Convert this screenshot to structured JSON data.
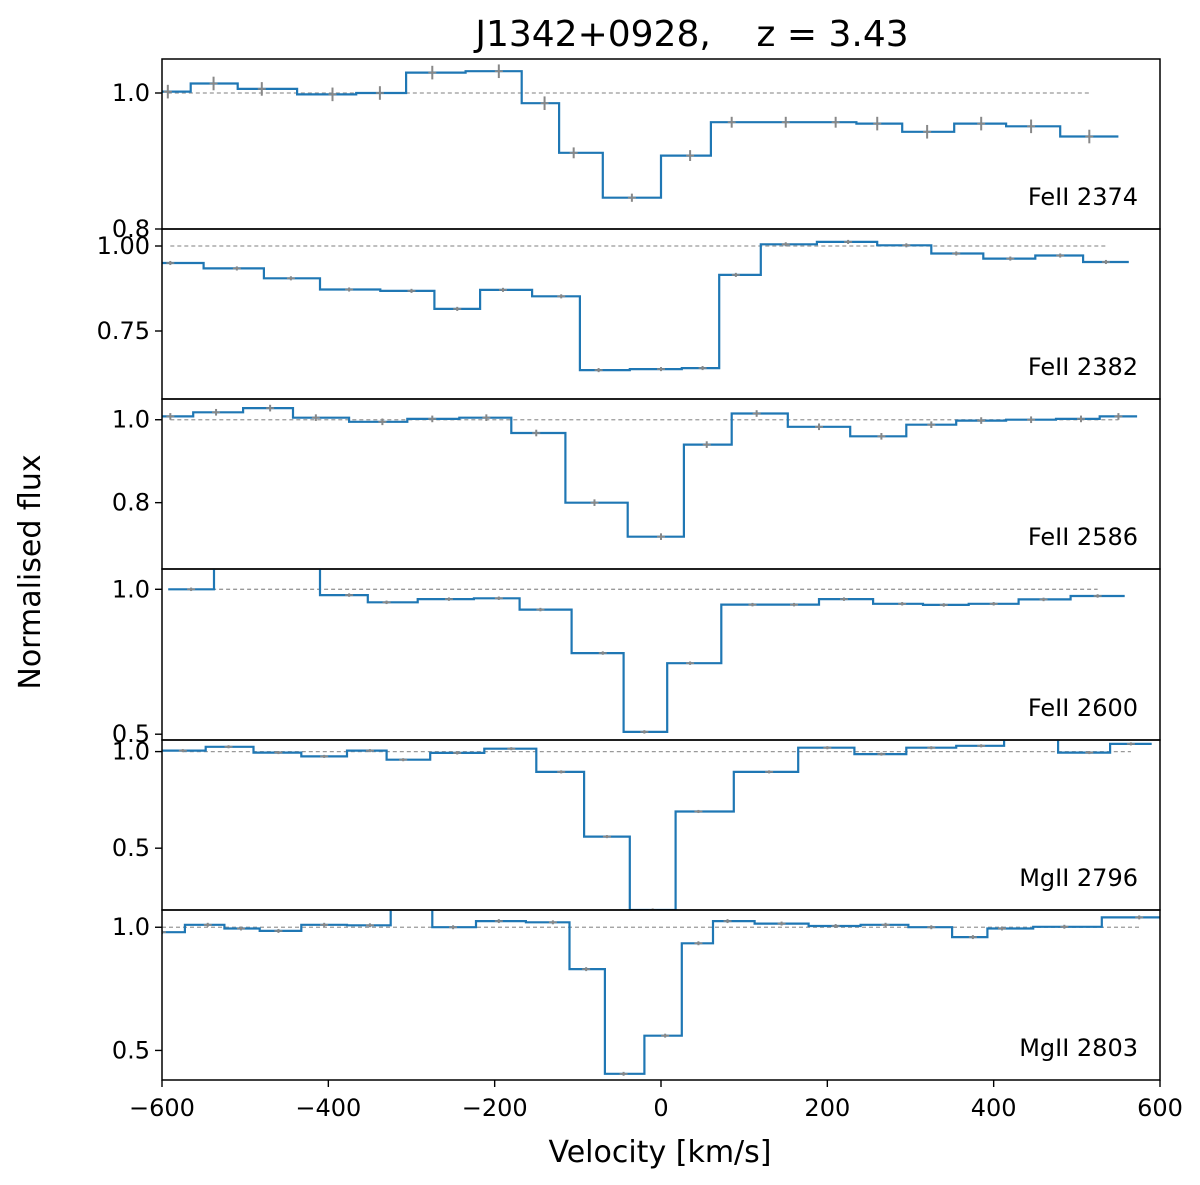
{
  "chart_data": {
    "type": "line",
    "title": "J1342+0928,    z = 3.43",
    "xlabel": "Velocity [km/s]",
    "ylabel": "Normalised flux",
    "xlim": [
      -600,
      600
    ],
    "xticks": [
      -600,
      -400,
      -200,
      0,
      200,
      400,
      600
    ],
    "xtick_labels": [
      "−600",
      "−400",
      "−200",
      "0",
      "200",
      "400",
      "600"
    ],
    "step_color": "#1f77b4",
    "error_color": "#888888",
    "reference_line": 1.0,
    "panels": [
      {
        "label": "FeII 2374",
        "ylim": [
          0.8,
          1.05
        ],
        "yticks": [
          1.0,
          0.8
        ],
        "ytick_labels": [
          "1.0",
          "0.8"
        ],
        "x": [
          -593,
          -538,
          -480,
          -395,
          -338,
          -275,
          -195,
          -140,
          -105,
          -35,
          35,
          85,
          150,
          210,
          260,
          320,
          385,
          445,
          515
        ],
        "y": [
          1.002,
          1.014,
          1.006,
          0.998,
          1.0,
          1.03,
          1.032,
          0.985,
          0.912,
          0.846,
          0.908,
          0.957,
          0.957,
          0.957,
          0.955,
          0.943,
          0.955,
          0.951,
          0.936
        ],
        "err": [
          0.01,
          0.01,
          0.01,
          0.01,
          0.01,
          0.01,
          0.01,
          0.01,
          0.008,
          0.006,
          0.008,
          0.008,
          0.008,
          0.008,
          0.01,
          0.01,
          0.01,
          0.01,
          0.01
        ]
      },
      {
        "label": "FeII 2382",
        "ylim": [
          0.55,
          1.05
        ],
        "yticks": [
          1.0,
          0.75
        ],
        "ytick_labels": [
          "1.00",
          "0.75"
        ],
        "x": [
          -590,
          -510,
          -445,
          -375,
          -300,
          -245,
          -190,
          -120,
          -75,
          0,
          50,
          90,
          150,
          225,
          295,
          355,
          420,
          480,
          535
        ],
        "y": [
          0.95,
          0.934,
          0.905,
          0.872,
          0.868,
          0.815,
          0.871,
          0.852,
          0.635,
          0.638,
          0.641,
          0.915,
          1.005,
          1.012,
          1.002,
          0.978,
          0.963,
          0.972,
          0.953
        ],
        "err": [
          0.006,
          0.006,
          0.006,
          0.006,
          0.006,
          0.006,
          0.006,
          0.006,
          0.006,
          0.006,
          0.006,
          0.006,
          0.006,
          0.006,
          0.006,
          0.006,
          0.006,
          0.006,
          0.006
        ]
      },
      {
        "label": "FeII 2586",
        "ylim": [
          0.64,
          1.05
        ],
        "yticks": [
          1.0,
          0.8
        ],
        "ytick_labels": [
          "1.0",
          "0.8"
        ],
        "x": [
          -590,
          -535,
          -470,
          -415,
          -335,
          -275,
          -210,
          -150,
          -80,
          0,
          55,
          115,
          190,
          265,
          325,
          385,
          445,
          505,
          550
        ],
        "y": [
          1.008,
          1.018,
          1.028,
          1.005,
          0.995,
          1.002,
          1.005,
          0.968,
          0.8,
          0.718,
          0.94,
          1.015,
          0.983,
          0.96,
          0.988,
          0.998,
          1.0,
          1.002,
          1.008
        ],
        "err": [
          0.008,
          0.008,
          0.008,
          0.008,
          0.008,
          0.008,
          0.008,
          0.008,
          0.008,
          0.008,
          0.008,
          0.008,
          0.008,
          0.008,
          0.008,
          0.008,
          0.008,
          0.008,
          0.008
        ]
      },
      {
        "label": "FeII 2600",
        "ylim": [
          0.48,
          1.07
        ],
        "yticks": [
          1.0,
          0.5
        ],
        "ytick_labels": [
          "1.0",
          "0.5"
        ],
        "x": [
          -565,
          -510,
          -445,
          -375,
          -330,
          -255,
          -195,
          -145,
          -70,
          -20,
          35,
          110,
          160,
          220,
          290,
          340,
          400,
          460,
          525
        ],
        "y": [
          1.0,
          1.14,
          1.14,
          0.98,
          0.955,
          0.966,
          0.969,
          0.93,
          0.78,
          0.508,
          0.745,
          0.947,
          0.947,
          0.966,
          0.95,
          0.946,
          0.95,
          0.965,
          0.977
        ],
        "err": [
          0.006,
          0.006,
          0.006,
          0.006,
          0.006,
          0.006,
          0.006,
          0.006,
          0.006,
          0.006,
          0.006,
          0.006,
          0.006,
          0.006,
          0.006,
          0.006,
          0.006,
          0.006,
          0.006
        ]
      },
      {
        "label": "MgII 2796",
        "ylim": [
          0.18,
          1.06
        ],
        "yticks": [
          1.0,
          0.5
        ],
        "ytick_labels": [
          "1.0",
          "0.5"
        ],
        "x": [
          -575,
          -520,
          -460,
          -405,
          -350,
          -310,
          -245,
          -180,
          -120,
          -65,
          -10,
          45,
          130,
          200,
          265,
          325,
          385,
          440,
          515,
          565
        ],
        "y": [
          1.005,
          1.025,
          0.995,
          0.975,
          1.005,
          0.958,
          0.993,
          1.015,
          0.895,
          0.56,
          0.18,
          0.69,
          0.895,
          1.02,
          0.987,
          1.02,
          1.03,
          1.075,
          0.995,
          1.04
        ],
        "err": [
          0.008,
          0.008,
          0.008,
          0.008,
          0.008,
          0.008,
          0.008,
          0.008,
          0.008,
          0.008,
          0.008,
          0.008,
          0.008,
          0.008,
          0.008,
          0.008,
          0.008,
          0.008,
          0.008,
          0.008
        ]
      },
      {
        "label": "MgII 2803",
        "ylim": [
          0.38,
          1.07
        ],
        "yticks": [
          1.0,
          0.5
        ],
        "ytick_labels": [
          "1.0",
          "0.5"
        ],
        "x": [
          -600,
          -545,
          -505,
          -460,
          -405,
          -350,
          -300,
          -250,
          -195,
          -130,
          -90,
          -45,
          5,
          45,
          80,
          145,
          210,
          270,
          325,
          375,
          410,
          485,
          575
        ],
        "y": [
          0.98,
          1.01,
          0.995,
          0.985,
          1.01,
          1.008,
          1.08,
          1.0,
          1.025,
          1.02,
          0.83,
          0.405,
          0.56,
          0.935,
          1.025,
          1.015,
          1.005,
          1.01,
          1.0,
          0.96,
          0.995,
          1.002,
          1.04
        ],
        "err": [
          0.008,
          0.008,
          0.008,
          0.008,
          0.008,
          0.008,
          0.008,
          0.008,
          0.008,
          0.008,
          0.008,
          0.008,
          0.008,
          0.008,
          0.008,
          0.008,
          0.008,
          0.008,
          0.008,
          0.008,
          0.008,
          0.008,
          0.008
        ]
      }
    ]
  }
}
